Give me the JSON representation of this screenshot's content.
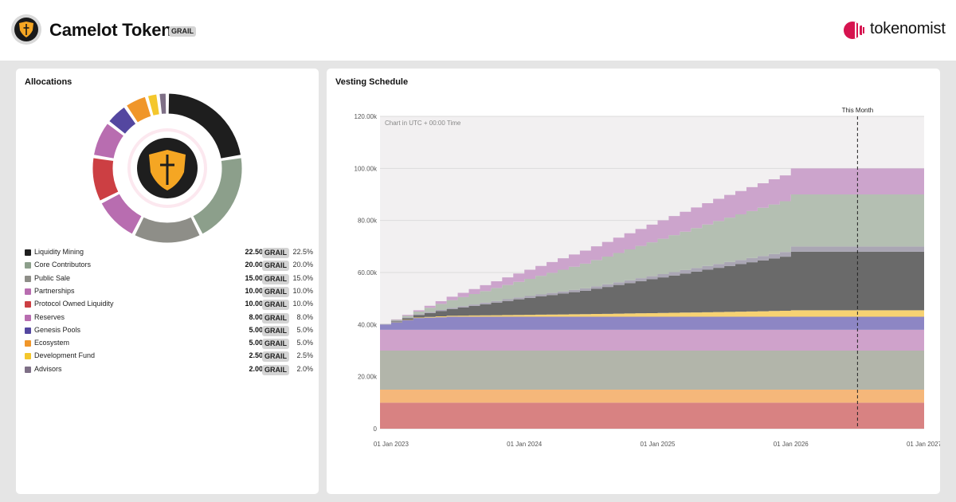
{
  "header": {
    "token_name": "Camelot Token",
    "token_symbol": "GRAIL",
    "brand_name": "tokenomist"
  },
  "colors": {
    "liquidity_mining": "#1e1e1e",
    "core_contributors": "#8c9f8b",
    "public_sale": "#8e8e88",
    "partnerships": "#b86db0",
    "protocol_owned_liquidity": "#cc3f43",
    "reserves": "#b86db0",
    "genesis_pools": "#5447a0",
    "ecosystem": "#f0962a",
    "development_fund": "#f4c72c",
    "advisors": "#7e6f86",
    "brand_accent": "#d6134f",
    "logo_gold": "#f5a623"
  },
  "allocations": {
    "title": "Allocations",
    "items": [
      {
        "name": "Liquidity Mining",
        "amount": "22.50k",
        "symbol": "GRAIL",
        "percent": "22.5%",
        "value": 22.5,
        "color": "#1e1e1e"
      },
      {
        "name": "Core Contributors",
        "amount": "20.00k",
        "symbol": "GRAIL",
        "percent": "20.0%",
        "value": 20.0,
        "color": "#8c9f8b"
      },
      {
        "name": "Public Sale",
        "amount": "15.00k",
        "symbol": "GRAIL",
        "percent": "15.0%",
        "value": 15.0,
        "color": "#8e8e88"
      },
      {
        "name": "Partnerships",
        "amount": "10.00k",
        "symbol": "GRAIL",
        "percent": "10.0%",
        "value": 10.0,
        "color": "#b86db0"
      },
      {
        "name": "Protocol Owned Liquidity",
        "amount": "10.00k",
        "symbol": "GRAIL",
        "percent": "10.0%",
        "value": 10.0,
        "color": "#cc3f43"
      },
      {
        "name": "Reserves",
        "amount": "8.00k",
        "symbol": "GRAIL",
        "percent": "8.0%",
        "value": 8.0,
        "color": "#b86db0"
      },
      {
        "name": "Genesis Pools",
        "amount": "5.00k",
        "symbol": "GRAIL",
        "percent": "5.0%",
        "value": 5.0,
        "color": "#5447a0"
      },
      {
        "name": "Ecosystem",
        "amount": "5.00k",
        "symbol": "GRAIL",
        "percent": "5.0%",
        "value": 5.0,
        "color": "#f0962a"
      },
      {
        "name": "Development Fund",
        "amount": "2.50k",
        "symbol": "GRAIL",
        "percent": "2.5%",
        "value": 2.5,
        "color": "#f4c72c"
      },
      {
        "name": "Advisors",
        "amount": "2.00k",
        "symbol": "GRAIL",
        "percent": "2.0%",
        "value": 2.0,
        "color": "#7e6f86"
      }
    ]
  },
  "chart_data": [
    {
      "type": "pie",
      "title": "Allocations",
      "categories": [
        "Liquidity Mining",
        "Core Contributors",
        "Public Sale",
        "Partnerships",
        "Protocol Owned Liquidity",
        "Reserves",
        "Genesis Pools",
        "Ecosystem",
        "Development Fund",
        "Advisors"
      ],
      "values": [
        22.5,
        20.0,
        15.0,
        10.0,
        10.0,
        8.0,
        5.0,
        5.0,
        2.5,
        2.0
      ],
      "style": "donut"
    },
    {
      "type": "area",
      "title": "Vesting Schedule",
      "annotation": "Chart in UTC + 00:00 Time",
      "marker": {
        "label": "This Month",
        "x": "2026-07-01"
      },
      "x_ticks": [
        "01 Jan 2023",
        "01 Jan 2024",
        "01 Jan 2025",
        "01 Jan 2026",
        "01 Jan 2027"
      ],
      "y_ticks": [
        "0",
        "20.00k",
        "40.00k",
        "60.00k",
        "80.00k",
        "100.00k",
        "120.00k"
      ],
      "ylim": [
        0,
        120000
      ],
      "xlim": [
        "2022-12-01",
        "2027-01-01"
      ],
      "step": "monthly",
      "stacked": true,
      "grid": true,
      "x": [
        "2022-12",
        "2023-03",
        "2023-06",
        "2023-12",
        "2024-06",
        "2024-12",
        "2025-06",
        "2025-12",
        "2026-01",
        "2026-12"
      ],
      "series": [
        {
          "color": "#d88282",
          "values": [
            10000,
            10000,
            10000,
            10000,
            10000,
            10000,
            10000,
            10000,
            10000,
            10000
          ]
        },
        {
          "color": "#f5b77a",
          "values": [
            5000,
            5000,
            5000,
            5000,
            5000,
            5000,
            5000,
            5000,
            5000,
            5000
          ]
        },
        {
          "color": "#b2b5aa",
          "values": [
            15000,
            15000,
            15000,
            15000,
            15000,
            15000,
            15000,
            15000,
            15000,
            15000
          ]
        },
        {
          "color": "#cfa2cb",
          "values": [
            8000,
            8000,
            8000,
            8000,
            8000,
            8000,
            8000,
            8000,
            8000,
            8000
          ]
        },
        {
          "color": "#8d86c4",
          "values": [
            2000,
            4500,
            5000,
            5000,
            5000,
            5000,
            5000,
            5000,
            5000,
            5000
          ]
        },
        {
          "color": "#f7d272",
          "values": [
            0,
            200,
            400,
            700,
            1000,
            1400,
            1800,
            2300,
            2500,
            2500
          ]
        },
        {
          "color": "#6a6a6a",
          "values": [
            0,
            1000,
            2500,
            6000,
            9000,
            13000,
            17000,
            20800,
            22500,
            22500
          ]
        },
        {
          "color": "#aaa6b4",
          "values": [
            200,
            300,
            500,
            700,
            900,
            1200,
            1500,
            1800,
            2000,
            2000
          ]
        },
        {
          "color": "#b4bfb2",
          "values": [
            0,
            1000,
            3000,
            6000,
            9500,
            13000,
            16500,
            19500,
            20000,
            20000
          ]
        },
        {
          "color": "#cca4cc",
          "values": [
            0,
            500,
            1300,
            3200,
            5000,
            6800,
            8500,
            9900,
            10000,
            10000
          ]
        }
      ]
    }
  ],
  "vesting": {
    "title": "Vesting Schedule",
    "note": "Chart in UTC + 00:00 Time",
    "this_month_label": "This Month"
  }
}
